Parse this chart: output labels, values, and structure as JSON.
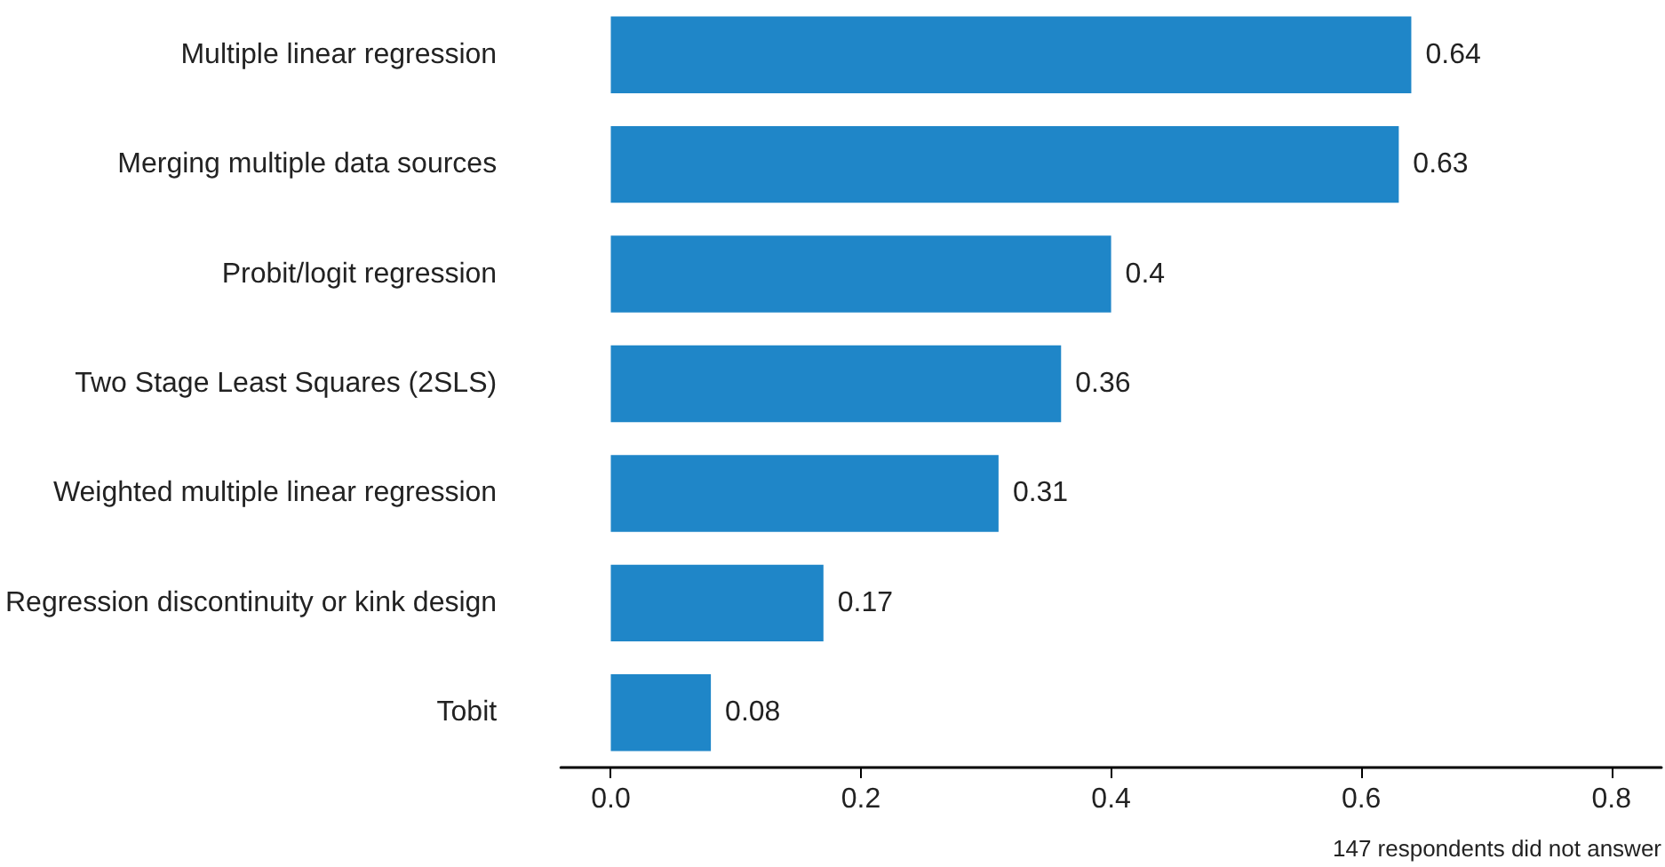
{
  "chart_data": {
    "type": "bar",
    "orientation": "horizontal",
    "categories": [
      "Multiple linear regression",
      "Merging multiple data sources",
      "Probit/logit regression",
      "Two Stage Least Squares (2SLS)",
      "Weighted multiple linear regression",
      "Regression discontinuity or kink design",
      "Tobit"
    ],
    "values": [
      0.64,
      0.63,
      0.4,
      0.36,
      0.31,
      0.17,
      0.08
    ],
    "color": "#1f86c8",
    "xlim": [
      -0.04,
      0.84
    ],
    "xticks": [
      {
        "value": 0,
        "label": "0.0"
      },
      {
        "value": 0.2,
        "label": "0.2"
      },
      {
        "value": 0.4,
        "label": "0.4"
      },
      {
        "value": 0.6,
        "label": "0.6"
      },
      {
        "value": 0.8,
        "label": "0.8"
      }
    ],
    "data_labels": true,
    "grid": false,
    "annotations": [
      "147 respondents did not answer"
    ]
  }
}
